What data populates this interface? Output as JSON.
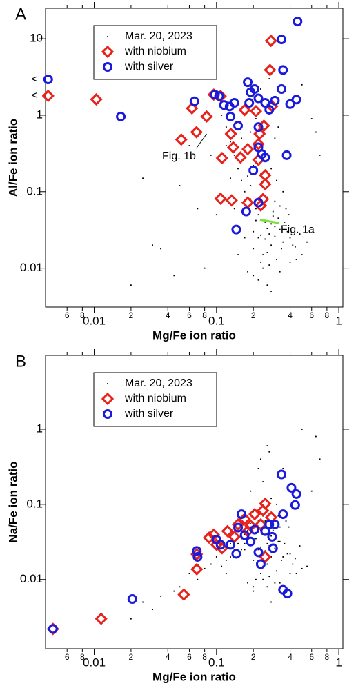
{
  "chart_data": [
    {
      "type": "scatter",
      "panel_label": "A",
      "x_label": "Mg/Fe ion ratio",
      "y_label": "Al/Fe ion ratio",
      "log_scale": true,
      "legend": "upper left",
      "xlim": [
        0.004,
        1.08
      ],
      "ylim": [
        0.0031,
        25
      ],
      "xticks": [
        {
          "value": 0.006,
          "label": "6"
        },
        {
          "value": 0.008,
          "label": "8"
        },
        0.01,
        {
          "value": 0.02,
          "label": "2"
        },
        {
          "value": 0.04,
          "label": "4"
        },
        {
          "value": 0.06,
          "label": "6"
        },
        {
          "value": 0.08,
          "label": "8"
        },
        0.1,
        {
          "value": 0.2,
          "label": "2"
        },
        {
          "value": 0.4,
          "label": "4"
        },
        {
          "value": 0.6,
          "label": "6"
        },
        {
          "value": 0.8,
          "label": "8"
        },
        1
      ],
      "yticks": [
        0.01,
        0.1,
        1,
        10
      ],
      "series": [
        {
          "name": "Mar. 20, 2023",
          "color": "#000000",
          "marker": "dot",
          "x": [
            0.2,
            0.22,
            0.25,
            0.28,
            0.3,
            0.18,
            0.21,
            0.24,
            0.27,
            0.32,
            0.19,
            0.23,
            0.26,
            0.29,
            0.35,
            0.17,
            0.2,
            0.22,
            0.25,
            0.31,
            0.38,
            0.16,
            0.21,
            0.24,
            0.27,
            0.33,
            0.42,
            0.15,
            0.19,
            0.23,
            0.26,
            0.3,
            0.36,
            0.45,
            0.14,
            0.18,
            0.22,
            0.28,
            0.34,
            0.4,
            0.5,
            0.13,
            0.2,
            0.25,
            0.3,
            0.37,
            0.12,
            0.17,
            0.23,
            0.29,
            0.33,
            0.44,
            0.55,
            0.11,
            0.16,
            0.21,
            0.26,
            0.31,
            0.39,
            0.48,
            0.19,
            0.24,
            0.28,
            0.35,
            0.21,
            0.26,
            0.3,
            0.23,
            0.27,
            0.2,
            0.25,
            0.32,
            0.15,
            0.18,
            0.22,
            0.26,
            0.12,
            0.14,
            0.17,
            0.2,
            0.24,
            0.28,
            0.33,
            0.4,
            0.1,
            0.13,
            0.09,
            0.06,
            0.05,
            0.035,
            0.03,
            0.045,
            0.07,
            0.08,
            0.6,
            0.7,
            0.5,
            0.65,
            0.02,
            0.025
          ],
          "values": [
            0.03,
            0.025,
            0.04,
            0.02,
            0.035,
            0.05,
            0.06,
            0.015,
            0.028,
            0.045,
            0.08,
            0.012,
            0.033,
            0.055,
            0.022,
            0.1,
            0.018,
            0.07,
            0.024,
            0.013,
            0.03,
            0.14,
            0.042,
            0.09,
            0.011,
            0.065,
            0.02,
            0.2,
            0.12,
            0.027,
            0.016,
            0.075,
            0.04,
            0.013,
            0.3,
            0.16,
            0.05,
            0.038,
            0.018,
            0.025,
            0.015,
            0.45,
            0.22,
            0.11,
            0.026,
            0.06,
            0.7,
            0.35,
            0.17,
            0.048,
            0.032,
            0.019,
            0.022,
            1.0,
            0.5,
            0.25,
            0.085,
            0.14,
            0.05,
            0.028,
            0.6,
            0.35,
            0.2,
            0.1,
            0.9,
            1.4,
            0.5,
            2.2,
            3.0,
            1.8,
            0.8,
            0.7,
            0.015,
            0.009,
            0.007,
            0.006,
            0.4,
            0.06,
            0.025,
            0.008,
            0.01,
            0.005,
            0.009,
            0.012,
            0.05,
            0.15,
            0.3,
            0.4,
            0.12,
            0.018,
            0.02,
            0.008,
            0.06,
            0.01,
            0.9,
            0.3,
            2.5,
            0.6,
            0.006,
            0.15
          ]
        },
        {
          "name": "with niobium",
          "color": "#e8211a",
          "marker": "diamond",
          "x": [
            0.0042,
            0.0104,
            0.0515,
            0.0686,
            0.063,
            0.083,
            0.095,
            0.108,
            0.279,
            0.274,
            0.17,
            0.21,
            0.285,
            0.131,
            0.137,
            0.157,
            0.22,
            0.18,
            0.111,
            0.22,
            0.25,
            0.25,
            0.24,
            0.23,
            0.18,
            0.108,
            0.133,
            0.244,
            0.225
          ],
          "values": [
            1.79,
            1.61,
            0.48,
            0.6,
            1.23,
            0.96,
            1.86,
            1.78,
            9.4,
            3.9,
            1.17,
            1.13,
            1.31,
            0.57,
            0.38,
            0.28,
            0.42,
            0.36,
            0.275,
            0.26,
            0.164,
            0.125,
            0.08,
            0.066,
            0.072,
            0.081,
            0.077,
            0.73,
            0.57
          ]
        },
        {
          "name": "with silver",
          "color": "#1a1adc",
          "marker": "circle",
          "x": [
            0.0042,
            0.0165,
            0.066,
            0.097,
            0.105,
            0.115,
            0.14,
            0.13,
            0.15,
            0.18,
            0.19,
            0.205,
            0.22,
            0.185,
            0.25,
            0.27,
            0.3,
            0.34,
            0.35,
            0.34,
            0.4,
            0.45,
            0.46,
            0.22,
            0.22,
            0.235,
            0.25,
            0.2,
            0.375,
            0.175,
            0.22,
            0.145,
            0.128
          ],
          "values": [
            2.94,
            0.96,
            1.52,
            1.86,
            1.78,
            1.36,
            1.45,
            0.96,
            0.73,
            2.7,
            2.0,
            2.2,
            1.66,
            1.45,
            1.45,
            1.18,
            1.55,
            9.8,
            3.9,
            2.2,
            1.4,
            1.6,
            16.8,
            0.7,
            0.38,
            0.31,
            0.28,
            0.19,
            0.3,
            0.055,
            0.072,
            0.032,
            1.3
          ]
        }
      ],
      "annotations": [
        {
          "text": "Fig. 1b",
          "x": 0.083,
          "y": 0.57,
          "color": "#000000"
        },
        {
          "text": "Fig. 1a",
          "x": 0.227,
          "y": 0.043,
          "color": "#7de03c"
        }
      ],
      "limit_markers": [
        {
          "text": "<",
          "y": 2.94
        },
        {
          "text": "<",
          "y": 1.79
        }
      ]
    },
    {
      "type": "scatter",
      "panel_label": "B",
      "x_label": "Mg/Fe ion ratio",
      "y_label": "Na/Fe ion ratio",
      "log_scale": true,
      "legend": "upper left",
      "xlim": [
        0.004,
        1.08
      ],
      "ylim": [
        0.0012,
        9.6
      ],
      "xticks": [
        {
          "value": 0.006,
          "label": "6"
        },
        {
          "value": 0.008,
          "label": "8"
        },
        0.01,
        {
          "value": 0.02,
          "label": "2"
        },
        {
          "value": 0.04,
          "label": "4"
        },
        {
          "value": 0.06,
          "label": "6"
        },
        {
          "value": 0.08,
          "label": "8"
        },
        0.1,
        {
          "value": 0.2,
          "label": "2"
        },
        {
          "value": 0.4,
          "label": "4"
        },
        {
          "value": 0.6,
          "label": "6"
        },
        {
          "value": 0.8,
          "label": "8"
        },
        1
      ],
      "yticks": [
        0.01,
        0.1,
        1
      ],
      "series": [
        {
          "name": "Mar. 20, 2023",
          "color": "#000000",
          "marker": "dot",
          "x": [
            0.2,
            0.22,
            0.25,
            0.28,
            0.3,
            0.18,
            0.21,
            0.24,
            0.27,
            0.32,
            0.19,
            0.23,
            0.26,
            0.29,
            0.35,
            0.17,
            0.2,
            0.22,
            0.25,
            0.31,
            0.38,
            0.16,
            0.21,
            0.24,
            0.27,
            0.33,
            0.42,
            0.15,
            0.19,
            0.23,
            0.26,
            0.3,
            0.36,
            0.45,
            0.14,
            0.18,
            0.22,
            0.28,
            0.34,
            0.4,
            0.5,
            0.13,
            0.2,
            0.25,
            0.3,
            0.37,
            0.12,
            0.17,
            0.23,
            0.29,
            0.33,
            0.44,
            0.55,
            0.11,
            0.16,
            0.21,
            0.26,
            0.31,
            0.39,
            0.48,
            0.19,
            0.24,
            0.28,
            0.35,
            0.21,
            0.26,
            0.3,
            0.23,
            0.27,
            0.2,
            0.25,
            0.32,
            0.15,
            0.18,
            0.22,
            0.26,
            0.12,
            0.14,
            0.17,
            0.2,
            0.24,
            0.28,
            0.33,
            0.4,
            0.1,
            0.13,
            0.09,
            0.06,
            0.05,
            0.035,
            0.03,
            0.045,
            0.07,
            0.08,
            0.6,
            0.7,
            0.5,
            0.65,
            0.02,
            0.025
          ],
          "values": [
            0.03,
            0.025,
            0.04,
            0.02,
            0.035,
            0.045,
            0.05,
            0.015,
            0.028,
            0.032,
            0.055,
            0.012,
            0.03,
            0.045,
            0.02,
            0.04,
            0.018,
            0.06,
            0.024,
            0.013,
            0.022,
            0.035,
            0.042,
            0.07,
            0.011,
            0.05,
            0.016,
            0.03,
            0.05,
            0.027,
            0.016,
            0.06,
            0.03,
            0.012,
            0.025,
            0.04,
            0.05,
            0.038,
            0.018,
            0.022,
            0.014,
            0.02,
            0.08,
            0.09,
            0.026,
            0.06,
            0.018,
            0.03,
            0.045,
            0.048,
            0.032,
            0.019,
            0.015,
            0.015,
            0.025,
            0.035,
            0.085,
            0.1,
            0.05,
            0.028,
            0.15,
            0.2,
            0.12,
            0.3,
            0.01,
            0.008,
            0.009,
            0.4,
            0.5,
            0.007,
            0.06,
            0.07,
            0.02,
            0.009,
            0.3,
            0.6,
            0.012,
            0.03,
            0.025,
            0.008,
            0.01,
            0.005,
            0.009,
            0.012,
            0.02,
            0.03,
            0.016,
            0.012,
            0.008,
            0.006,
            0.004,
            0.007,
            0.01,
            0.014,
            0.15,
            0.4,
            1.0,
            0.8,
            0.003,
            0.005
          ]
        },
        {
          "name": "with niobium",
          "color": "#e8211a",
          "marker": "diamond",
          "x": [
            0.0046,
            0.0114,
            0.054,
            0.069,
            0.069,
            0.095,
            0.087,
            0.1,
            0.111,
            0.123,
            0.15,
            0.17,
            0.205,
            0.24,
            0.25,
            0.23,
            0.18,
            0.28,
            0.25,
            0.14,
            0.19
          ],
          "values": [
            0.0022,
            0.003,
            0.0063,
            0.0137,
            0.0217,
            0.0395,
            0.036,
            0.029,
            0.026,
            0.044,
            0.054,
            0.064,
            0.074,
            0.083,
            0.102,
            0.054,
            0.044,
            0.067,
            0.02,
            0.037,
            0.052
          ]
        },
        {
          "name": "with silver",
          "color": "#1a1adc",
          "marker": "circle",
          "x": [
            0.0046,
            0.0205,
            0.069,
            0.07,
            0.1,
            0.108,
            0.13,
            0.15,
            0.145,
            0.17,
            0.19,
            0.205,
            0.22,
            0.23,
            0.25,
            0.285,
            0.3,
            0.35,
            0.34,
            0.41,
            0.45,
            0.44,
            0.35,
            0.38,
            0.27,
            0.16,
            0.29
          ],
          "values": [
            0.0022,
            0.0055,
            0.024,
            0.02,
            0.034,
            0.029,
            0.029,
            0.049,
            0.022,
            0.039,
            0.032,
            0.046,
            0.023,
            0.016,
            0.044,
            0.037,
            0.054,
            0.074,
            0.25,
            0.166,
            0.137,
            0.098,
            0.0073,
            0.0065,
            0.054,
            0.074,
            0.026
          ]
        }
      ]
    }
  ]
}
